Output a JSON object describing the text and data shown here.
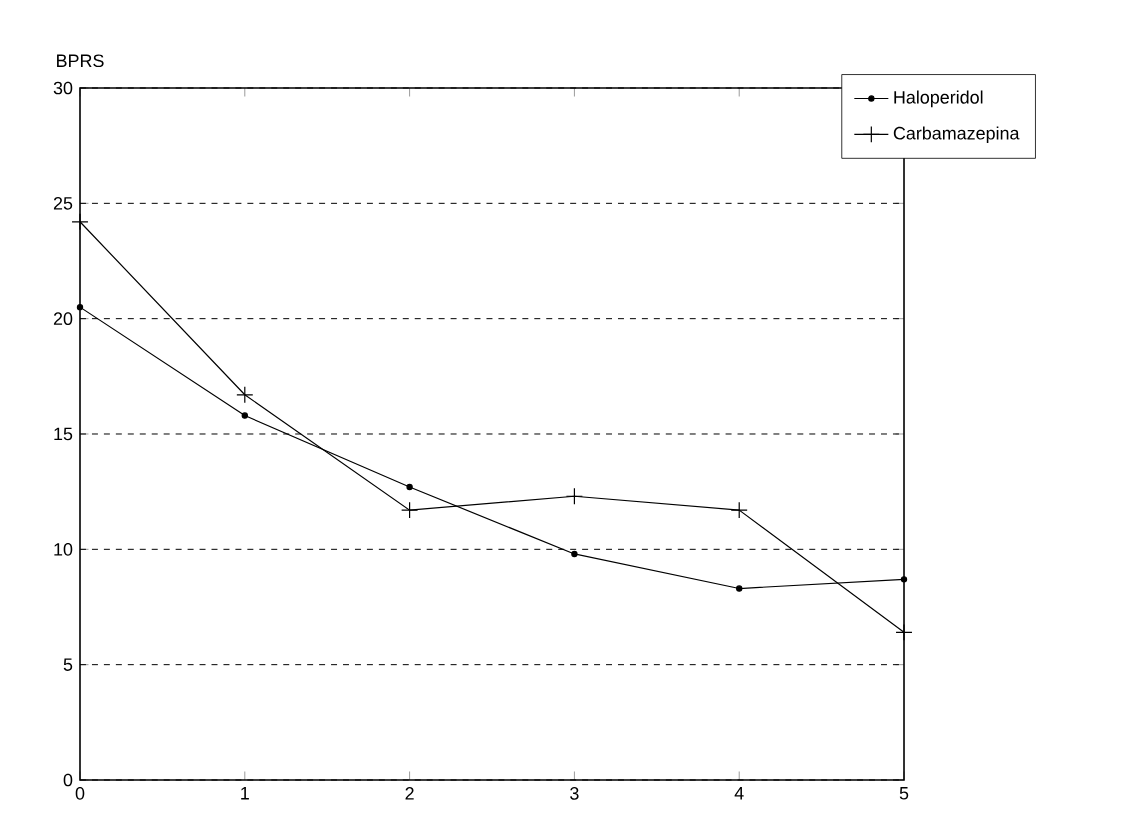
{
  "chart_data": {
    "type": "line",
    "ylabel": "BPRS",
    "x": [
      0,
      1,
      2,
      3,
      4,
      5
    ],
    "series": [
      {
        "name": "Haloperidol",
        "color": "#000000",
        "marker": "circle",
        "values": [
          20.5,
          15.8,
          12.7,
          9.8,
          8.3,
          8.7
        ]
      },
      {
        "name": "Carbamazepina",
        "color": "#000000",
        "marker": "cross",
        "values": [
          24.2,
          16.7,
          11.7,
          12.3,
          11.7,
          6.4
        ]
      }
    ],
    "xlim": [
      0,
      5
    ],
    "xticks": [
      0,
      1,
      2,
      3,
      4,
      5
    ],
    "ylim": [
      0,
      30
    ],
    "yticks": [
      0,
      5,
      10,
      15,
      20,
      25,
      30
    ],
    "grid": "y",
    "legend": "top right",
    "line_style": "solid"
  }
}
